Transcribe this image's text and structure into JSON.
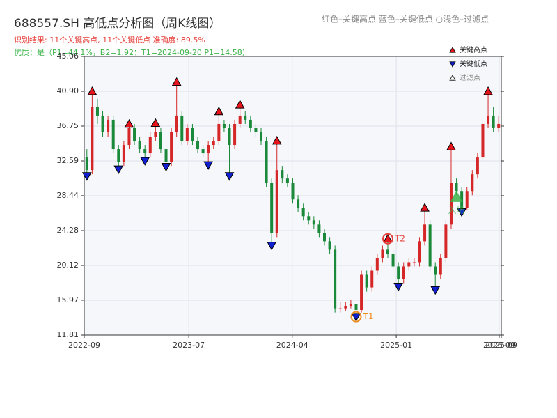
{
  "chart_data": {
    "type": "candlestick",
    "title": "688557.SH 高低点分析图（周K线图）",
    "subtitle": "识别结果: 11个关键高点, 11个关键低点   准确度: 89.5%",
    "quality_note": "优质：是（P1=44.1%，B2=1.92；T1=2024-09-20 P1=14.58）",
    "header_legend": "红色–关键高点      蓝色–关键低点    ○浅色–过滤点",
    "up_color": "#d62728",
    "down_color": "#1a8a3a",
    "ohlc": [
      [
        33,
        34,
        30.8,
        31.5
      ],
      [
        31.5,
        40.9,
        31,
        39
      ],
      [
        39,
        40,
        37,
        38
      ],
      [
        38,
        38.5,
        35.5,
        36
      ],
      [
        36,
        38,
        35.5,
        37.5
      ],
      [
        37.5,
        38,
        33.5,
        34
      ],
      [
        34,
        34.5,
        31.6,
        32.5
      ],
      [
        32.5,
        35,
        32,
        34.5
      ],
      [
        34.5,
        37,
        34,
        36.5
      ],
      [
        36.5,
        37,
        34.5,
        35
      ],
      [
        35,
        35.5,
        33.5,
        34
      ],
      [
        34,
        34.5,
        32.6,
        33.5
      ],
      [
        33.5,
        36,
        33,
        35.5
      ],
      [
        35.5,
        37.1,
        35,
        36
      ],
      [
        36,
        36.5,
        33.5,
        34
      ],
      [
        34,
        34.5,
        31.9,
        32.5
      ],
      [
        32.5,
        36.5,
        32,
        36
      ],
      [
        36,
        42,
        35.5,
        38
      ],
      [
        38,
        38.5,
        34.5,
        35
      ],
      [
        35,
        37,
        34.5,
        36.5
      ],
      [
        36.5,
        37,
        34.5,
        35
      ],
      [
        35,
        35.5,
        33.5,
        34
      ],
      [
        34,
        34.5,
        33,
        33.5
      ],
      [
        33.5,
        35,
        32.1,
        34.5
      ],
      [
        34.5,
        35.5,
        34,
        35
      ],
      [
        35,
        38.5,
        34.5,
        37
      ],
      [
        37,
        37.5,
        36,
        36.5
      ],
      [
        36.5,
        37,
        30.8,
        34.5
      ],
      [
        34.5,
        37.5,
        34,
        37
      ],
      [
        37,
        39.3,
        36.5,
        38
      ],
      [
        38,
        38.5,
        37,
        37.5
      ],
      [
        37.5,
        38,
        36,
        36.5
      ],
      [
        36.5,
        37,
        35.5,
        36
      ],
      [
        36,
        36.5,
        34.5,
        35
      ],
      [
        35,
        35.5,
        29.5,
        30
      ],
      [
        30,
        30.5,
        22.5,
        24
      ],
      [
        24,
        35,
        23.5,
        31.5
      ],
      [
        31.5,
        32,
        30,
        30.5
      ],
      [
        30.5,
        31,
        29.5,
        30
      ],
      [
        30,
        30.5,
        27.5,
        28
      ],
      [
        28,
        28.5,
        26.5,
        27
      ],
      [
        27,
        27.5,
        25.5,
        26
      ],
      [
        26,
        26.5,
        25,
        25.5
      ],
      [
        25.5,
        26,
        24.5,
        25
      ],
      [
        25,
        25.5,
        23.5,
        24
      ],
      [
        24,
        24.5,
        22.5,
        23
      ],
      [
        23,
        23.5,
        21.5,
        22
      ],
      [
        22,
        22.5,
        14.5,
        15
      ],
      [
        15,
        15.8,
        14.5,
        15
      ],
      [
        15,
        15.8,
        14.7,
        15.3
      ],
      [
        15.3,
        16,
        15,
        15.5
      ],
      [
        15.5,
        16,
        14,
        14.8
      ],
      [
        14.8,
        19.5,
        14.5,
        19
      ],
      [
        19,
        19.5,
        17,
        17.5
      ],
      [
        17.5,
        20,
        17,
        19.5
      ],
      [
        19.5,
        21.5,
        19,
        21
      ],
      [
        21,
        22.5,
        20.5,
        22
      ],
      [
        22,
        23.3,
        21,
        21.5
      ],
      [
        21.5,
        22,
        19.5,
        20
      ],
      [
        20,
        20.5,
        17.6,
        18.5
      ],
      [
        18.5,
        20.5,
        18,
        20
      ],
      [
        20,
        21,
        19.5,
        20.5
      ],
      [
        20.5,
        21,
        20,
        20.5
      ],
      [
        20.5,
        23.5,
        20,
        23
      ],
      [
        23,
        27,
        22.5,
        25
      ],
      [
        25,
        25.5,
        19.5,
        20
      ],
      [
        20,
        20.5,
        17.2,
        19
      ],
      [
        19,
        21.5,
        18.5,
        21
      ],
      [
        21,
        25.5,
        20.5,
        25
      ],
      [
        25,
        34.3,
        24.5,
        30
      ],
      [
        30,
        30.5,
        28.5,
        29
      ],
      [
        29,
        29.5,
        26.5,
        27
      ],
      [
        27,
        29.5,
        26.8,
        29
      ],
      [
        29,
        31.5,
        28.5,
        31
      ],
      [
        31,
        33.5,
        30.5,
        33
      ],
      [
        33,
        37.5,
        32.5,
        37
      ],
      [
        37,
        40.9,
        36.5,
        38
      ],
      [
        38,
        39,
        36,
        36.5
      ],
      [
        36.5,
        38,
        36,
        37
      ]
    ],
    "key_highs": {
      "name": "关键高点",
      "color": "#e8141c",
      "points": [
        {
          "x": 1,
          "y": 40.9
        },
        {
          "x": 8,
          "y": 37
        },
        {
          "x": 13,
          "y": 37.1
        },
        {
          "x": 17,
          "y": 42
        },
        {
          "x": 25,
          "y": 38.5
        },
        {
          "x": 29,
          "y": 39.3
        },
        {
          "x": 36,
          "y": 35
        },
        {
          "x": 57,
          "y": 23.3
        },
        {
          "x": 64,
          "y": 27
        },
        {
          "x": 69,
          "y": 34.3
        },
        {
          "x": 76,
          "y": 40.9
        }
      ]
    },
    "key_lows": {
      "name": "关键低点",
      "color": "#1020d0",
      "points": [
        {
          "x": 0,
          "y": 30.8
        },
        {
          "x": 6,
          "y": 31.6
        },
        {
          "x": 11,
          "y": 32.6
        },
        {
          "x": 15,
          "y": 31.9
        },
        {
          "x": 23,
          "y": 32.1
        },
        {
          "x": 27,
          "y": 30.8
        },
        {
          "x": 35,
          "y": 22.5
        },
        {
          "x": 51,
          "y": 14
        },
        {
          "x": 59,
          "y": 17.6
        },
        {
          "x": 66,
          "y": 17.2
        },
        {
          "x": 71,
          "y": 26.5
        }
      ]
    },
    "filtered": {
      "name": "过滤点"
    },
    "annotations": [
      {
        "label": "T1",
        "x": 51,
        "y": 14,
        "color": "#f08c1e"
      },
      {
        "label": "T2",
        "x": 57,
        "y": 23.3,
        "color": "#e8403a"
      }
    ],
    "entry": {
      "label": "入场",
      "x": 70,
      "y": 28.3,
      "color": "#3cb44b"
    },
    "xlim": [
      0,
      79
    ],
    "xticks": [
      {
        "value": 0,
        "label": "2022-09"
      },
      {
        "value": 19.8,
        "label": "2023-07"
      },
      {
        "value": 39.4,
        "label": "2024-04"
      },
      {
        "value": 59.1,
        "label": "2025-01"
      },
      {
        "value": 78.6,
        "label": "2025-09"
      },
      {
        "value": 79,
        "label": "2025-09"
      }
    ],
    "ylim": [
      11.81,
      45.06
    ],
    "yticks": [
      11.81,
      15.97,
      20.12,
      24.28,
      28.44,
      32.59,
      36.75,
      {
        "value": 40.9,
        "label": "40.90"
      },
      45.06
    ],
    "grid": true
  }
}
